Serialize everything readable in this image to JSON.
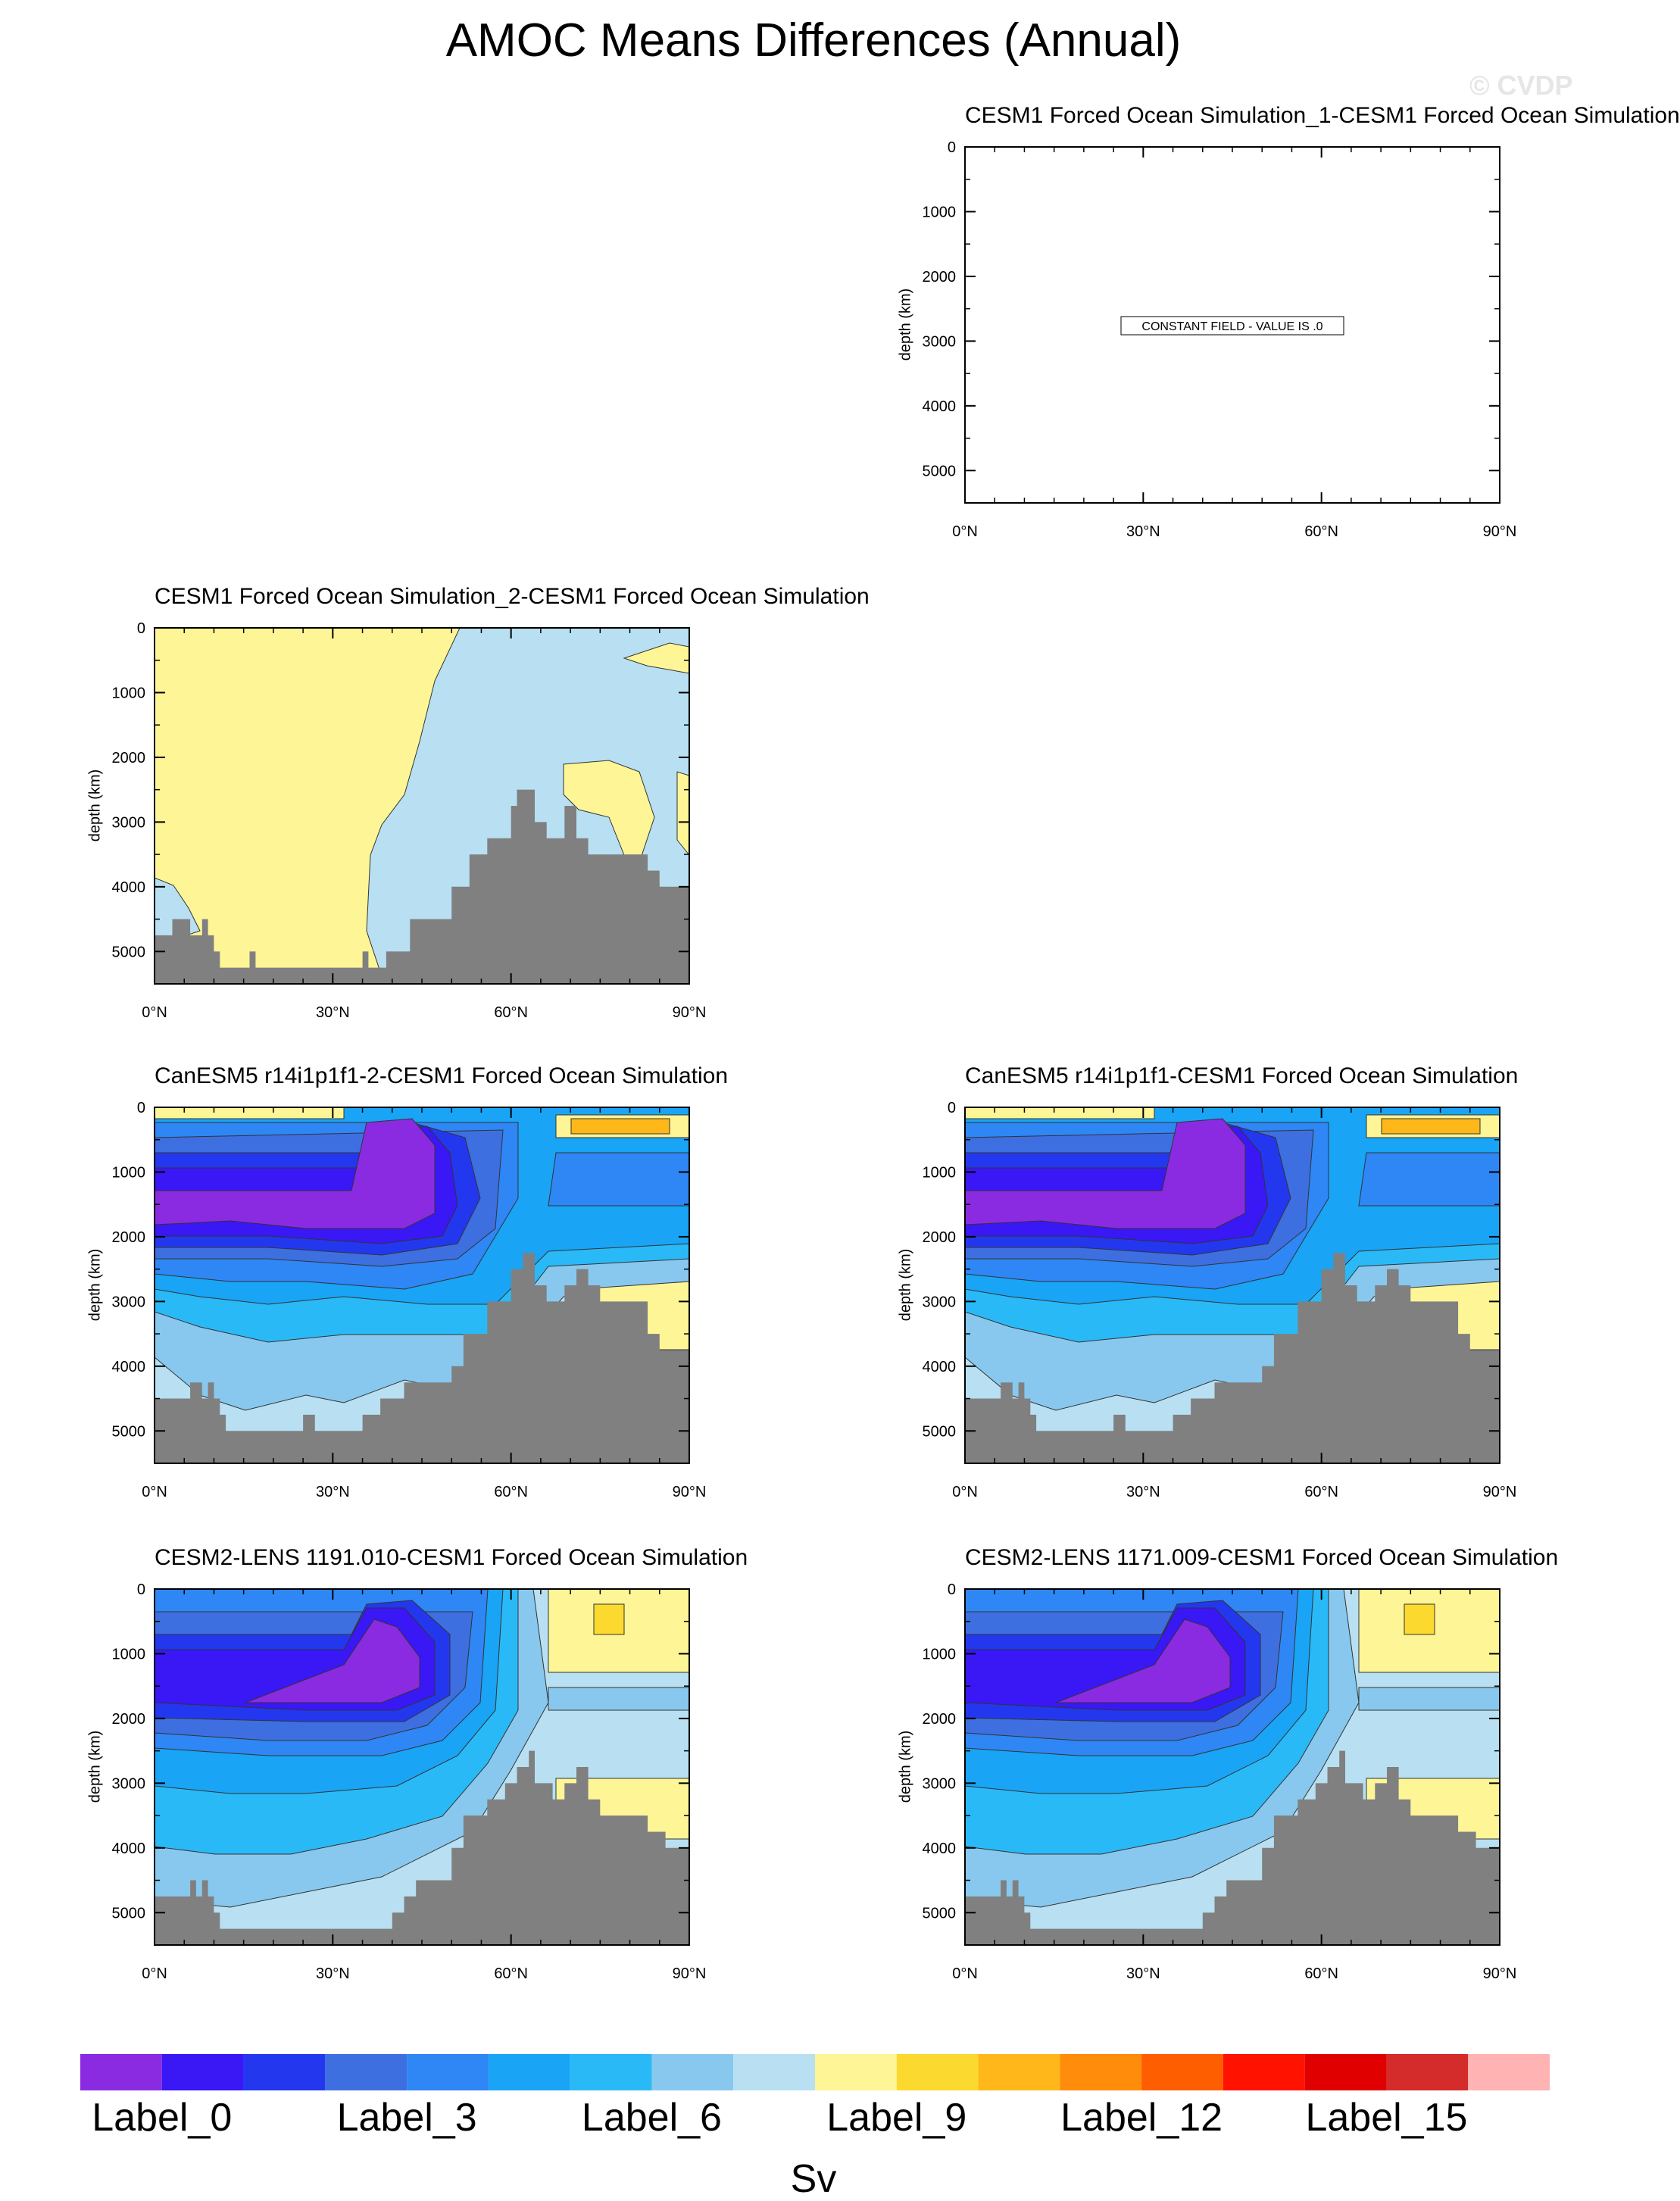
{
  "page": {
    "title": "AMOC Means Differences (Annual)",
    "watermark": "© CVDP"
  },
  "chart_data": [
    {
      "id": "p1",
      "type": "contour",
      "title": "CESM1 Forced Ocean Simulation_1-CESM1 Forced Ocean Simulation",
      "ylabel": "depth (km)",
      "x_ticks": [
        "0°N",
        "30°N",
        "60°N",
        "90°N"
      ],
      "y_ticks": [
        "0",
        "1000",
        "2000",
        "3000",
        "4000",
        "5000"
      ],
      "xlim": [
        0,
        90
      ],
      "ylim": [
        5500,
        0
      ],
      "constant_field": true,
      "constant_label": "CONSTANT FIELD - VALUE IS .0",
      "bathymetry": [],
      "values_description": "constant 0"
    },
    {
      "id": "p2",
      "type": "contour",
      "title": "CESM1 Forced Ocean Simulation_2-CESM1 Forced Ocean Simulation",
      "ylabel": "depth (km)",
      "x_ticks": [
        "0°N",
        "30°N",
        "60°N",
        "90°N"
      ],
      "y_ticks": [
        "0",
        "1000",
        "2000",
        "3000",
        "4000",
        "5000"
      ],
      "xlim": [
        0,
        90
      ],
      "ylim": [
        5500,
        0
      ],
      "constant_field": false,
      "style": "flat",
      "bathymetry": [
        [
          0,
          4750
        ],
        [
          3,
          4750
        ],
        [
          3,
          4500
        ],
        [
          6,
          4500
        ],
        [
          6,
          4750
        ],
        [
          8,
          4750
        ],
        [
          8,
          4500
        ],
        [
          9,
          4500
        ],
        [
          9,
          4750
        ],
        [
          10,
          4750
        ],
        [
          10,
          5000
        ],
        [
          11,
          5000
        ],
        [
          11,
          5250
        ],
        [
          16,
          5250
        ],
        [
          16,
          5000
        ],
        [
          17,
          5000
        ],
        [
          17,
          5250
        ],
        [
          35,
          5250
        ],
        [
          35,
          5000
        ],
        [
          36,
          5000
        ],
        [
          36,
          5250
        ],
        [
          39,
          5250
        ],
        [
          39,
          5000
        ],
        [
          43,
          5000
        ],
        [
          43,
          4500
        ],
        [
          50,
          4500
        ],
        [
          50,
          4000
        ],
        [
          53,
          4000
        ],
        [
          53,
          3500
        ],
        [
          56,
          3500
        ],
        [
          56,
          3250
        ],
        [
          60,
          3250
        ],
        [
          60,
          2750
        ],
        [
          61,
          2750
        ],
        [
          61,
          2500
        ],
        [
          64,
          2500
        ],
        [
          64,
          3000
        ],
        [
          66,
          3000
        ],
        [
          66,
          3250
        ],
        [
          69,
          3250
        ],
        [
          69,
          2750
        ],
        [
          71,
          2750
        ],
        [
          71,
          3250
        ],
        [
          73,
          3250
        ],
        [
          73,
          3500
        ],
        [
          83,
          3500
        ],
        [
          83,
          3750
        ],
        [
          85,
          3750
        ],
        [
          85,
          4000
        ],
        [
          90,
          4000
        ]
      ]
    },
    {
      "id": "p3",
      "type": "contour",
      "title": "CanESM5 r14i1p1f1-2-CESM1 Forced Ocean Simulation",
      "ylabel": "depth (km)",
      "x_ticks": [
        "0°N",
        "30°N",
        "60°N",
        "90°N"
      ],
      "y_ticks": [
        "0",
        "1000",
        "2000",
        "3000",
        "4000",
        "5000"
      ],
      "xlim": [
        0,
        90
      ],
      "ylim": [
        5500,
        0
      ],
      "constant_field": false,
      "style": "canesm",
      "bathymetry": [
        [
          0,
          4500
        ],
        [
          6,
          4500
        ],
        [
          6,
          4250
        ],
        [
          8,
          4250
        ],
        [
          8,
          4500
        ],
        [
          9,
          4500
        ],
        [
          9,
          4250
        ],
        [
          10,
          4250
        ],
        [
          10,
          4500
        ],
        [
          11,
          4500
        ],
        [
          11,
          4750
        ],
        [
          12,
          4750
        ],
        [
          12,
          5000
        ],
        [
          25,
          5000
        ],
        [
          25,
          4750
        ],
        [
          27,
          4750
        ],
        [
          27,
          5000
        ],
        [
          35,
          5000
        ],
        [
          35,
          4750
        ],
        [
          38,
          4750
        ],
        [
          38,
          4500
        ],
        [
          42,
          4500
        ],
        [
          42,
          4250
        ],
        [
          50,
          4250
        ],
        [
          50,
          4000
        ],
        [
          52,
          4000
        ],
        [
          52,
          3500
        ],
        [
          56,
          3500
        ],
        [
          56,
          3000
        ],
        [
          60,
          3000
        ],
        [
          60,
          2500
        ],
        [
          62,
          2500
        ],
        [
          62,
          2250
        ],
        [
          64,
          2250
        ],
        [
          64,
          2750
        ],
        [
          66,
          2750
        ],
        [
          66,
          3000
        ],
        [
          69,
          3000
        ],
        [
          69,
          2750
        ],
        [
          71,
          2750
        ],
        [
          71,
          2500
        ],
        [
          73,
          2500
        ],
        [
          73,
          2750
        ],
        [
          75,
          2750
        ],
        [
          75,
          3000
        ],
        [
          83,
          3000
        ],
        [
          83,
          3500
        ],
        [
          85,
          3500
        ],
        [
          85,
          3750
        ],
        [
          90,
          3750
        ]
      ]
    },
    {
      "id": "p4",
      "type": "contour",
      "title": "CanESM5 r14i1p1f1-CESM1 Forced Ocean Simulation",
      "ylabel": "depth (km)",
      "x_ticks": [
        "0°N",
        "30°N",
        "60°N",
        "90°N"
      ],
      "y_ticks": [
        "0",
        "1000",
        "2000",
        "3000",
        "4000",
        "5000"
      ],
      "xlim": [
        0,
        90
      ],
      "ylim": [
        5500,
        0
      ],
      "constant_field": false,
      "style": "canesm",
      "bathymetry": [
        [
          0,
          4500
        ],
        [
          6,
          4500
        ],
        [
          6,
          4250
        ],
        [
          8,
          4250
        ],
        [
          8,
          4500
        ],
        [
          9,
          4500
        ],
        [
          9,
          4250
        ],
        [
          10,
          4250
        ],
        [
          10,
          4500
        ],
        [
          11,
          4500
        ],
        [
          11,
          4750
        ],
        [
          12,
          4750
        ],
        [
          12,
          5000
        ],
        [
          25,
          5000
        ],
        [
          25,
          4750
        ],
        [
          27,
          4750
        ],
        [
          27,
          5000
        ],
        [
          35,
          5000
        ],
        [
          35,
          4750
        ],
        [
          38,
          4750
        ],
        [
          38,
          4500
        ],
        [
          42,
          4500
        ],
        [
          42,
          4250
        ],
        [
          50,
          4250
        ],
        [
          50,
          4000
        ],
        [
          52,
          4000
        ],
        [
          52,
          3500
        ],
        [
          56,
          3500
        ],
        [
          56,
          3000
        ],
        [
          60,
          3000
        ],
        [
          60,
          2500
        ],
        [
          62,
          2500
        ],
        [
          62,
          2250
        ],
        [
          64,
          2250
        ],
        [
          64,
          2750
        ],
        [
          66,
          2750
        ],
        [
          66,
          3000
        ],
        [
          69,
          3000
        ],
        [
          69,
          2750
        ],
        [
          71,
          2750
        ],
        [
          71,
          2500
        ],
        [
          73,
          2500
        ],
        [
          73,
          2750
        ],
        [
          75,
          2750
        ],
        [
          75,
          3000
        ],
        [
          83,
          3000
        ],
        [
          83,
          3500
        ],
        [
          85,
          3500
        ],
        [
          85,
          3750
        ],
        [
          90,
          3750
        ]
      ]
    },
    {
      "id": "p5",
      "type": "contour",
      "title": "CESM2-LENS 1191.010-CESM1 Forced Ocean Simulation",
      "ylabel": "depth (km)",
      "x_ticks": [
        "0°N",
        "30°N",
        "60°N",
        "90°N"
      ],
      "y_ticks": [
        "0",
        "1000",
        "2000",
        "3000",
        "4000",
        "5000"
      ],
      "xlim": [
        0,
        90
      ],
      "ylim": [
        5500,
        0
      ],
      "constant_field": false,
      "style": "cesm2",
      "bathymetry": [
        [
          0,
          4750
        ],
        [
          6,
          4750
        ],
        [
          6,
          4500
        ],
        [
          7,
          4500
        ],
        [
          7,
          4750
        ],
        [
          8,
          4750
        ],
        [
          8,
          4500
        ],
        [
          9,
          4500
        ],
        [
          9,
          4750
        ],
        [
          10,
          4750
        ],
        [
          10,
          5000
        ],
        [
          11,
          5000
        ],
        [
          11,
          5250
        ],
        [
          40,
          5250
        ],
        [
          40,
          5000
        ],
        [
          42,
          5000
        ],
        [
          42,
          4750
        ],
        [
          44,
          4750
        ],
        [
          44,
          4500
        ],
        [
          50,
          4500
        ],
        [
          50,
          4000
        ],
        [
          52,
          4000
        ],
        [
          52,
          3500
        ],
        [
          56,
          3500
        ],
        [
          56,
          3250
        ],
        [
          59,
          3250
        ],
        [
          59,
          3000
        ],
        [
          61,
          3000
        ],
        [
          61,
          2750
        ],
        [
          63,
          2750
        ],
        [
          63,
          2500
        ],
        [
          64,
          2500
        ],
        [
          64,
          3000
        ],
        [
          67,
          3000
        ],
        [
          67,
          3250
        ],
        [
          69,
          3250
        ],
        [
          69,
          3000
        ],
        [
          71,
          3000
        ],
        [
          71,
          2750
        ],
        [
          73,
          2750
        ],
        [
          73,
          3250
        ],
        [
          75,
          3250
        ],
        [
          75,
          3500
        ],
        [
          83,
          3500
        ],
        [
          83,
          3750
        ],
        [
          86,
          3750
        ],
        [
          86,
          4000
        ],
        [
          90,
          4000
        ]
      ]
    },
    {
      "id": "p6",
      "type": "contour",
      "title": "CESM2-LENS 1171.009-CESM1 Forced Ocean Simulation",
      "ylabel": "depth (km)",
      "x_ticks": [
        "0°N",
        "30°N",
        "60°N",
        "90°N"
      ],
      "y_ticks": [
        "0",
        "1000",
        "2000",
        "3000",
        "4000",
        "5000"
      ],
      "xlim": [
        0,
        90
      ],
      "ylim": [
        5500,
        0
      ],
      "constant_field": false,
      "style": "cesm2",
      "bathymetry": [
        [
          0,
          4750
        ],
        [
          6,
          4750
        ],
        [
          6,
          4500
        ],
        [
          7,
          4500
        ],
        [
          7,
          4750
        ],
        [
          8,
          4750
        ],
        [
          8,
          4500
        ],
        [
          9,
          4500
        ],
        [
          9,
          4750
        ],
        [
          10,
          4750
        ],
        [
          10,
          5000
        ],
        [
          11,
          5000
        ],
        [
          11,
          5250
        ],
        [
          40,
          5250
        ],
        [
          40,
          5000
        ],
        [
          42,
          5000
        ],
        [
          42,
          4750
        ],
        [
          44,
          4750
        ],
        [
          44,
          4500
        ],
        [
          50,
          4500
        ],
        [
          50,
          4000
        ],
        [
          52,
          4000
        ],
        [
          52,
          3500
        ],
        [
          56,
          3500
        ],
        [
          56,
          3250
        ],
        [
          59,
          3250
        ],
        [
          59,
          3000
        ],
        [
          61,
          3000
        ],
        [
          61,
          2750
        ],
        [
          63,
          2750
        ],
        [
          63,
          2500
        ],
        [
          64,
          2500
        ],
        [
          64,
          3000
        ],
        [
          67,
          3000
        ],
        [
          67,
          3250
        ],
        [
          69,
          3250
        ],
        [
          69,
          3000
        ],
        [
          71,
          3000
        ],
        [
          71,
          2750
        ],
        [
          73,
          2750
        ],
        [
          73,
          3250
        ],
        [
          75,
          3250
        ],
        [
          75,
          3500
        ],
        [
          83,
          3500
        ],
        [
          83,
          3750
        ],
        [
          86,
          3750
        ],
        [
          86,
          4000
        ],
        [
          90,
          4000
        ]
      ]
    }
  ],
  "colorbar": {
    "units": "Sv",
    "colors": [
      "#8a2be2",
      "#3a17f5",
      "#2338ee",
      "#3e6fe0",
      "#2f86f5",
      "#19a4f5",
      "#2ab9f7",
      "#88c8ee",
      "#b8e0f2",
      "#fef596",
      "#fcd92f",
      "#ffb71a",
      "#ff8c0a",
      "#ff5e00",
      "#ff1200",
      "#e00000",
      "#d42b2b",
      "#ffb3b3"
    ],
    "labels": [
      "Label_0",
      "Label_3",
      "Label_6",
      "Label_9",
      "Label_12",
      "Label_15"
    ],
    "label_positions": [
      0,
      3,
      6,
      9,
      12,
      15
    ]
  }
}
